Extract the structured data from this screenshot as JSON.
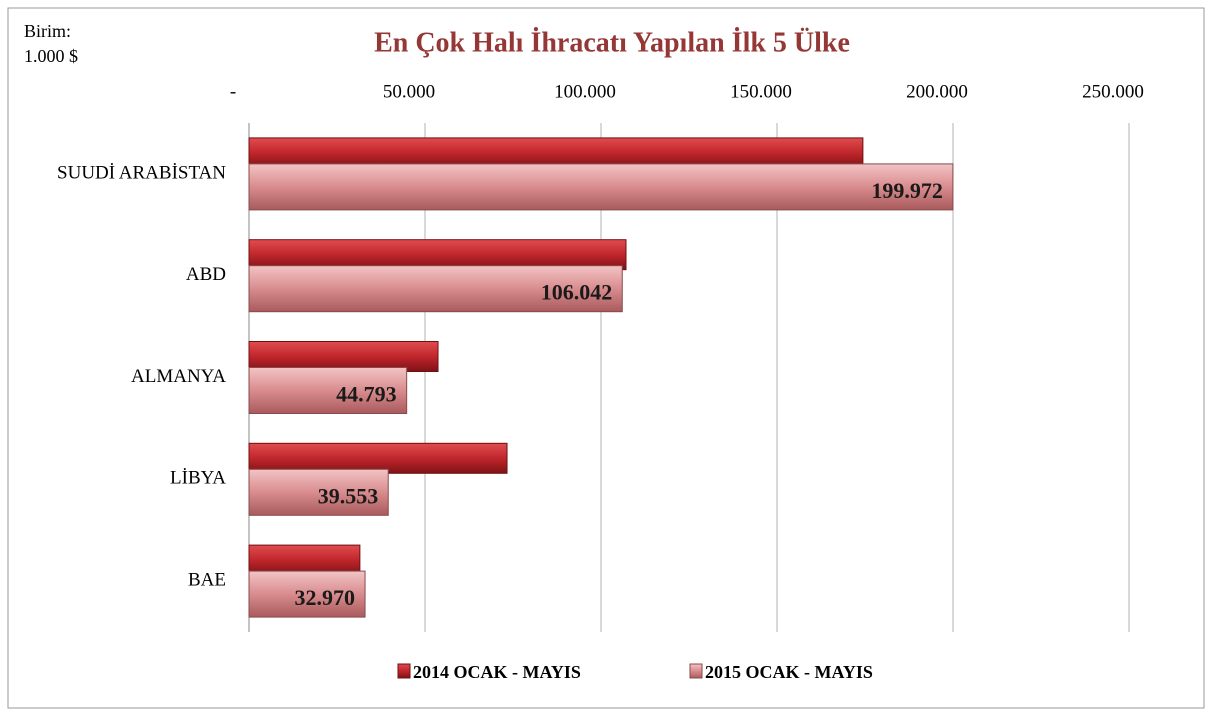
{
  "chart_data": {
    "type": "bar",
    "orientation": "horizontal",
    "title": "En Çok Halı İhracatı Yapılan İlk 5 Ülke",
    "unit_label": [
      "Birim:",
      "1.000 $"
    ],
    "categories": [
      "SUUDİ ARABİSTAN",
      "ABD",
      "ALMANYA",
      "LİBYA",
      "BAE"
    ],
    "series": [
      {
        "name": "2014 OCAK - MAYIS",
        "color": "#c0262b",
        "values": [
          174400,
          107100,
          53700,
          73300,
          31500
        ]
      },
      {
        "name": "2015 OCAK - MAYIS",
        "color": "#d98c8e",
        "values": [
          199972,
          106042,
          44793,
          39553,
          32970
        ],
        "value_labels": [
          "199.972",
          "106.042",
          "44.793",
          "39.553",
          "32.970"
        ]
      }
    ],
    "xlim": [
      0,
      250000
    ],
    "xticks": [
      {
        "value": 0,
        "label": "-"
      },
      {
        "value": 50000,
        "label": "50.000"
      },
      {
        "value": 100000,
        "label": "100.000"
      },
      {
        "value": 150000,
        "label": "150.000"
      },
      {
        "value": 200000,
        "label": "200.000"
      },
      {
        "value": 250000,
        "label": "250.000"
      }
    ],
    "grid": true,
    "legend": "bottom"
  }
}
